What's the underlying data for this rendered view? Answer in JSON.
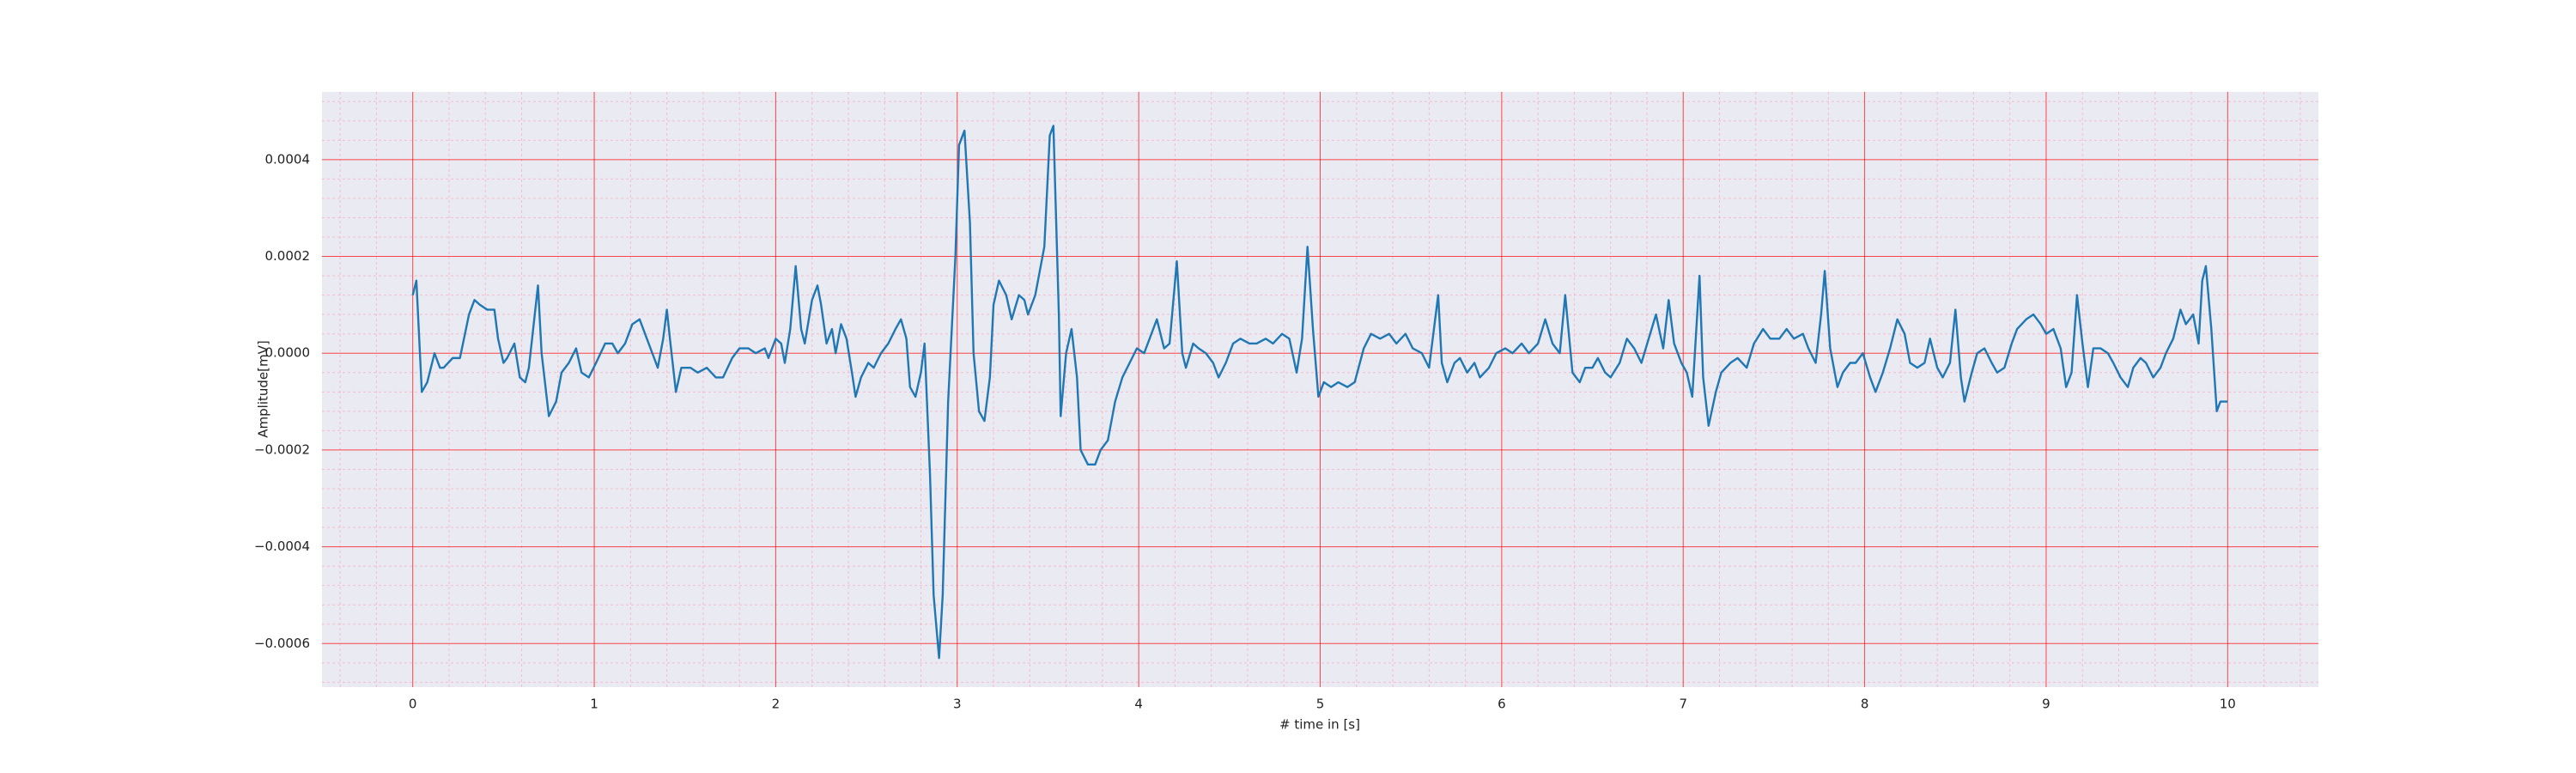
{
  "chart_data": {
    "type": "line",
    "xlabel": "# time in [s]",
    "ylabel": "Amplitude[mV]",
    "xlim": [
      -0.5,
      10.5
    ],
    "ylim": [
      -0.00069,
      0.00054
    ],
    "xticks": [
      0,
      1,
      2,
      3,
      4,
      5,
      6,
      7,
      8,
      9,
      10
    ],
    "yticks": [
      {
        "value": -0.0006,
        "label": "−0.0006"
      },
      {
        "value": -0.0004,
        "label": "−0.0004"
      },
      {
        "value": -0.0002,
        "label": "−0.0002"
      },
      {
        "value": 0,
        "label": "0.0000"
      },
      0.0002,
      0.0004
    ],
    "xminorticks": [
      -0.4,
      -0.2,
      0.2,
      0.4,
      0.6,
      0.8,
      1.2,
      1.4,
      1.6,
      1.8,
      2.2,
      2.4,
      2.6,
      2.8,
      3.2,
      3.4,
      3.6,
      3.8,
      4.2,
      4.4,
      4.6,
      4.8,
      5.2,
      5.4,
      5.6,
      5.8,
      6.2,
      6.4,
      6.6,
      6.8,
      7.2,
      7.4,
      7.6,
      7.8,
      8.2,
      8.4,
      8.6,
      8.8,
      9.2,
      9.4,
      9.6,
      9.8,
      10.2,
      10.4
    ],
    "yminorticks": [
      -0.00068,
      -0.00064,
      -0.00056,
      -0.00052,
      -0.00048,
      -0.00044,
      -0.00036,
      -0.00032,
      -0.00028,
      -0.00024,
      -0.00016,
      -0.00012,
      -8e-05,
      -4e-05,
      4e-05,
      8e-05,
      0.00012,
      0.00016,
      0.00024,
      0.00028,
      0.00032,
      0.00036,
      0.00044,
      0.00048,
      0.00052
    ],
    "grid": true,
    "minor_grid": true,
    "background": "#eaeaf2",
    "series": [
      {
        "color": "#1f77b4",
        "x": [
          0,
          0.02,
          0.05,
          0.08,
          0.12,
          0.15,
          0.17,
          0.22,
          0.26,
          0.31,
          0.34,
          0.37,
          0.41,
          0.45,
          0.47,
          0.5,
          0.52,
          0.56,
          0.59,
          0.62,
          0.64,
          0.69,
          0.71,
          0.75,
          0.79,
          0.82,
          0.86,
          0.9,
          0.93,
          0.97,
          1.01,
          1.06,
          1.1,
          1.13,
          1.17,
          1.21,
          1.25,
          1.29,
          1.32,
          1.35,
          1.38,
          1.4,
          1.42,
          1.45,
          1.48,
          1.53,
          1.57,
          1.62,
          1.67,
          1.71,
          1.76,
          1.8,
          1.85,
          1.89,
          1.94,
          1.96,
          2.0,
          2.03,
          2.05,
          2.08,
          2.11,
          2.14,
          2.16,
          2.2,
          2.23,
          2.25,
          2.28,
          2.31,
          2.33,
          2.36,
          2.39,
          2.42,
          2.44,
          2.47,
          2.51,
          2.54,
          2.58,
          2.62,
          2.66,
          2.69,
          2.72,
          2.74,
          2.77,
          2.8,
          2.82,
          2.85,
          2.87,
          2.9,
          2.92,
          2.95,
          2.99,
          3.01,
          3.04,
          3.07,
          3.09,
          3.12,
          3.15,
          3.18,
          3.2,
          3.23,
          3.27,
          3.3,
          3.34,
          3.37,
          3.39,
          3.43,
          3.46,
          3.48,
          3.51,
          3.53,
          3.56,
          3.57,
          3.6,
          3.63,
          3.66,
          3.68,
          3.72,
          3.76,
          3.79,
          3.83,
          3.87,
          3.91,
          3.95,
          3.99,
          4.03,
          4.06,
          4.1,
          4.14,
          4.17,
          4.21,
          4.24,
          4.26,
          4.3,
          4.33,
          4.37,
          4.41,
          4.44,
          4.48,
          4.52,
          4.56,
          4.61,
          4.65,
          4.7,
          4.74,
          4.79,
          4.83,
          4.87,
          4.9,
          4.93,
          4.96,
          4.99,
          5.02,
          5.06,
          5.1,
          5.15,
          5.19,
          5.24,
          5.28,
          5.33,
          5.38,
          5.42,
          5.47,
          5.51,
          5.56,
          5.6,
          5.65,
          5.67,
          5.7,
          5.74,
          5.77,
          5.81,
          5.85,
          5.88,
          5.93,
          5.97,
          6.02,
          6.06,
          6.11,
          6.15,
          6.2,
          6.24,
          6.28,
          6.32,
          6.35,
          6.39,
          6.43,
          6.46,
          6.5,
          6.53,
          6.57,
          6.6,
          6.65,
          6.69,
          6.73,
          6.77,
          6.81,
          6.85,
          6.89,
          6.92,
          6.95,
          6.99,
          7.02,
          7.05,
          7.09,
          7.11,
          7.14,
          7.18,
          7.21,
          7.26,
          7.3,
          7.35,
          7.39,
          7.44,
          7.48,
          7.53,
          7.57,
          7.61,
          7.66,
          7.69,
          7.73,
          7.76,
          7.78,
          7.81,
          7.85,
          7.88,
          7.92,
          7.95,
          7.99,
          8.03,
          8.06,
          8.1,
          8.14,
          8.18,
          8.22,
          8.25,
          8.29,
          8.33,
          8.36,
          8.4,
          8.43,
          8.47,
          8.5,
          8.53,
          8.55,
          8.59,
          8.62,
          8.66,
          8.7,
          8.73,
          8.77,
          8.81,
          8.84,
          8.89,
          8.93,
          8.97,
          9.0,
          9.04,
          9.08,
          9.11,
          9.14,
          9.17,
          9.2,
          9.23,
          9.26,
          9.3,
          9.34,
          9.37,
          9.41,
          9.45,
          9.48,
          9.52,
          9.55,
          9.59,
          9.63,
          9.66,
          9.7,
          9.74,
          9.77,
          9.81,
          9.84,
          9.86,
          9.88,
          9.91,
          9.94,
          9.96,
          10.0
        ],
        "values": [
          0.00012,
          0.00015,
          -8e-05,
          -6e-05,
          0.0,
          -3e-05,
          -3e-05,
          -1e-05,
          -1e-05,
          8e-05,
          0.00011,
          0.0001,
          9e-05,
          9e-05,
          3e-05,
          -2e-05,
          -1e-05,
          2e-05,
          -5e-05,
          -6e-05,
          -3e-05,
          0.00014,
          0.0,
          -0.00013,
          -0.0001,
          -4e-05,
          -2e-05,
          1e-05,
          -4e-05,
          -5e-05,
          -2e-05,
          2e-05,
          2e-05,
          0.0,
          2e-05,
          6e-05,
          7e-05,
          3e-05,
          0.0,
          -3e-05,
          3e-05,
          9e-05,
          2e-05,
          -8e-05,
          -3e-05,
          -3e-05,
          -4e-05,
          -3e-05,
          -5e-05,
          -5e-05,
          -1e-05,
          1e-05,
          1e-05,
          0.0,
          1e-05,
          -1e-05,
          3e-05,
          2e-05,
          -2e-05,
          5e-05,
          0.00018,
          5e-05,
          2e-05,
          0.00011,
          0.00014,
          0.0001,
          2e-05,
          5e-05,
          0.0,
          6e-05,
          3e-05,
          -4e-05,
          -9e-05,
          -5e-05,
          -2e-05,
          -3e-05,
          0.0,
          2e-05,
          5e-05,
          7e-05,
          3e-05,
          -7e-05,
          -9e-05,
          -4e-05,
          2e-05,
          -0.00025,
          -0.0005,
          -0.00063,
          -0.0005,
          -0.0001,
          0.0002,
          0.00043,
          0.00046,
          0.00027,
          0.0,
          -0.00012,
          -0.00014,
          -5e-05,
          0.0001,
          0.00015,
          0.00012,
          7e-05,
          0.00012,
          0.00011,
          8e-05,
          0.00012,
          0.00018,
          0.00022,
          0.00045,
          0.00047,
          8e-05,
          -0.00013,
          0.0,
          5e-05,
          -5e-05,
          -0.0002,
          -0.00023,
          -0.00023,
          -0.0002,
          -0.00018,
          -0.0001,
          -5e-05,
          -2e-05,
          1e-05,
          0.0,
          3e-05,
          7e-05,
          1e-05,
          2e-05,
          0.00019,
          0.0,
          -3e-05,
          2e-05,
          1e-05,
          0.0,
          -2e-05,
          -5e-05,
          -2e-05,
          2e-05,
          3e-05,
          2e-05,
          2e-05,
          3e-05,
          2e-05,
          4e-05,
          3e-05,
          -4e-05,
          3e-05,
          0.00022,
          5e-05,
          -9e-05,
          -6e-05,
          -7e-05,
          -6e-05,
          -7e-05,
          -6e-05,
          1e-05,
          4e-05,
          3e-05,
          4e-05,
          2e-05,
          4e-05,
          1e-05,
          0.0,
          -3e-05,
          0.00012,
          -2e-05,
          -6e-05,
          -2e-05,
          -1e-05,
          -4e-05,
          -2e-05,
          -5e-05,
          -3e-05,
          0.0,
          1e-05,
          0.0,
          2e-05,
          0.0,
          2e-05,
          7e-05,
          2e-05,
          0.0,
          0.00012,
          -4e-05,
          -6e-05,
          -3e-05,
          -3e-05,
          -1e-05,
          -4e-05,
          -5e-05,
          -2e-05,
          3e-05,
          1e-05,
          -2e-05,
          3e-05,
          8e-05,
          1e-05,
          0.00011,
          2e-05,
          -2e-05,
          -4e-05,
          -9e-05,
          0.00016,
          -5e-05,
          -0.00015,
          -8e-05,
          -4e-05,
          -2e-05,
          -1e-05,
          -3e-05,
          2e-05,
          5e-05,
          3e-05,
          3e-05,
          5e-05,
          3e-05,
          4e-05,
          1e-05,
          -2e-05,
          8e-05,
          0.00017,
          1e-05,
          -7e-05,
          -4e-05,
          -2e-05,
          -2e-05,
          0.0,
          -5e-05,
          -8e-05,
          -4e-05,
          1e-05,
          7e-05,
          4e-05,
          -2e-05,
          -3e-05,
          -2e-05,
          3e-05,
          -3e-05,
          -5e-05,
          -2e-05,
          9e-05,
          -5e-05,
          -0.0001,
          -4e-05,
          0.0,
          1e-05,
          -2e-05,
          -4e-05,
          -3e-05,
          2e-05,
          5e-05,
          7e-05,
          8e-05,
          6e-05,
          4e-05,
          5e-05,
          1e-05,
          -7e-05,
          -4e-05,
          0.00012,
          2e-05,
          -7e-05,
          1e-05,
          1e-05,
          0.0,
          -2e-05,
          -5e-05,
          -7e-05,
          -3e-05,
          -1e-05,
          -2e-05,
          -5e-05,
          -3e-05,
          0.0,
          3e-05,
          9e-05,
          6e-05,
          8e-05,
          2e-05,
          0.00015,
          0.00018,
          5e-05,
          -0.00012,
          -0.0001,
          -0.0001
        ]
      }
    ]
  }
}
